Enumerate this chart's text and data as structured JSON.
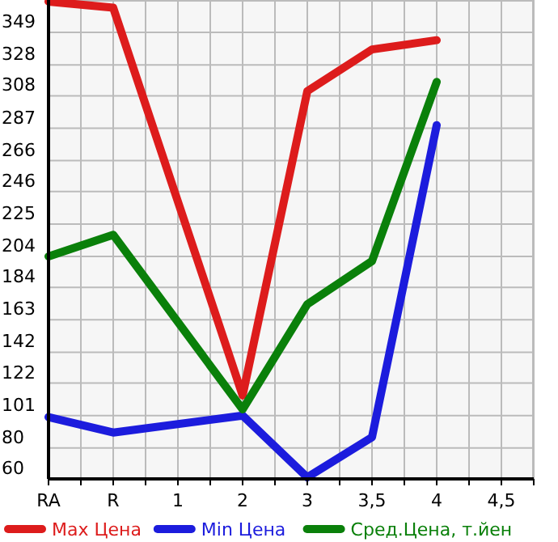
{
  "chart_data": {
    "type": "line",
    "categories": [
      "RA",
      "R",
      "1",
      "2",
      "3",
      "3,5",
      "4",
      "4,5"
    ],
    "series": [
      {
        "name": "Max Цена",
        "color": "#dd1c1c",
        "values": [
          369,
          365,
          null,
          114,
          311,
          338,
          344,
          null
        ]
      },
      {
        "name": "Min Цена",
        "color": "#1c1cdd",
        "values": [
          100,
          90,
          null,
          101,
          61,
          87,
          289,
          null
        ]
      },
      {
        "name": "Сред.Цена, т.йен",
        "color": "#0a800a",
        "values": [
          204,
          218,
          null,
          105,
          173,
          201,
          317,
          null
        ]
      }
    ],
    "ylim": [
      60,
      370
    ],
    "yticks": [
      60,
      80,
      101,
      122,
      142,
      163,
      184,
      204,
      225,
      246,
      266,
      287,
      308,
      328,
      349
    ],
    "grid": true,
    "legend": "bottom",
    "marker": "none",
    "line_style": "solid"
  }
}
